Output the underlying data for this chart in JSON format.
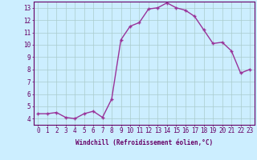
{
  "x": [
    0,
    1,
    2,
    3,
    4,
    5,
    6,
    7,
    8,
    9,
    10,
    11,
    12,
    13,
    14,
    15,
    16,
    17,
    18,
    19,
    20,
    21,
    22,
    23
  ],
  "y": [
    4.4,
    4.4,
    4.5,
    4.1,
    4.0,
    4.4,
    4.6,
    4.1,
    5.6,
    10.4,
    11.5,
    11.8,
    12.9,
    13.0,
    13.4,
    13.0,
    12.8,
    12.3,
    11.2,
    10.1,
    10.2,
    9.5,
    7.7,
    8.0
  ],
  "line_color": "#993399",
  "marker": "+",
  "marker_size": 3,
  "bg_color": "#cceeff",
  "grid_color": "#aacccc",
  "xlabel": "Windchill (Refroidissement éolien,°C)",
  "xlim": [
    -0.5,
    23.5
  ],
  "ylim": [
    3.5,
    13.5
  ],
  "yticks": [
    4,
    5,
    6,
    7,
    8,
    9,
    10,
    11,
    12,
    13
  ],
  "xticks": [
    0,
    1,
    2,
    3,
    4,
    5,
    6,
    7,
    8,
    9,
    10,
    11,
    12,
    13,
    14,
    15,
    16,
    17,
    18,
    19,
    20,
    21,
    22,
    23
  ],
  "xtick_labels": [
    "0",
    "1",
    "2",
    "3",
    "4",
    "5",
    "6",
    "7",
    "8",
    "9",
    "10",
    "11",
    "12",
    "13",
    "14",
    "15",
    "16",
    "17",
    "18",
    "19",
    "20",
    "21",
    "22",
    "23"
  ],
  "ytick_labels": [
    "4",
    "5",
    "6",
    "7",
    "8",
    "9",
    "10",
    "11",
    "12",
    "13"
  ],
  "label_fontsize": 5.5,
  "tick_fontsize": 5.5,
  "line_width": 1.0,
  "axis_color": "#660066"
}
